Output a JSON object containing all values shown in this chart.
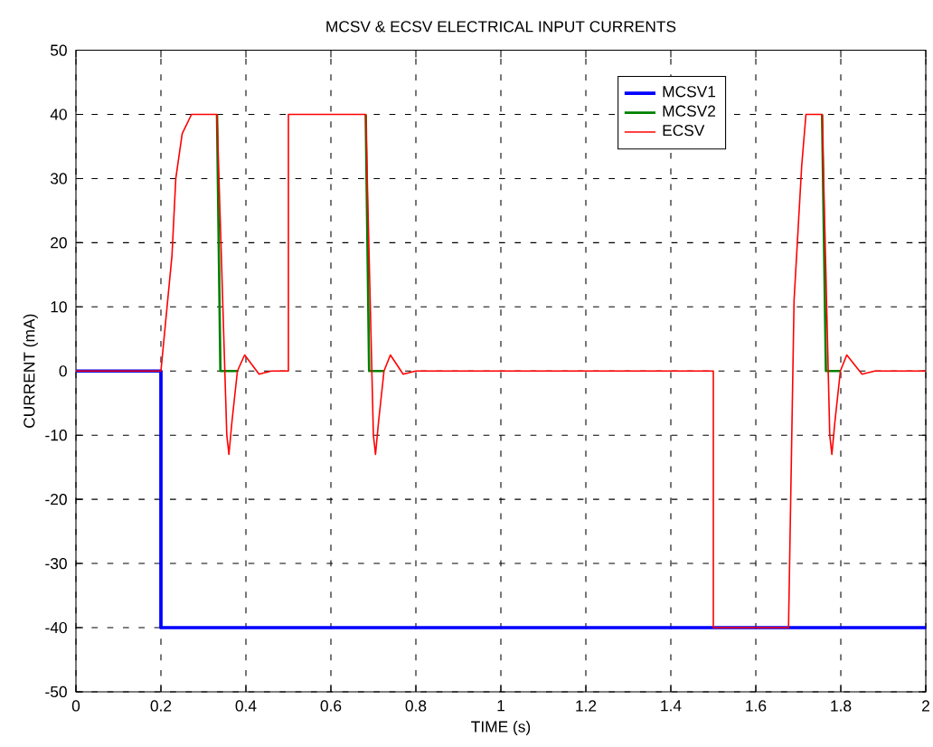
{
  "chart_data": {
    "type": "line",
    "title": "MCSV & ECSV ELECTRICAL INPUT CURRENTS",
    "xlabel": "TIME (s)",
    "ylabel": "CURRENT (mA)",
    "xlim": [
      0,
      2
    ],
    "ylim": [
      -50,
      50
    ],
    "xticks": [
      0,
      0.2,
      0.4,
      0.6,
      0.8,
      1,
      1.2,
      1.4,
      1.6,
      1.8,
      2
    ],
    "yticks": [
      -50,
      -40,
      -30,
      -20,
      -10,
      0,
      10,
      20,
      30,
      40,
      50
    ],
    "grid": true,
    "legend": "top right",
    "marker": "none",
    "line_style": "solid",
    "series": [
      {
        "name": "MCSV1",
        "color": "#0000ff",
        "x": [
          0,
          0.2,
          0.2,
          2
        ],
        "values": [
          0,
          0,
          -40,
          -40
        ]
      },
      {
        "name": "MCSV2",
        "color": "#008000",
        "x": [
          0.332,
          0.34,
          0.38,
          0.39,
          0.682,
          0.69,
          0.725,
          0.74,
          1.756,
          1.765,
          1.799
        ],
        "values": [
          40,
          0,
          0,
          null,
          40,
          0,
          0,
          null,
          40,
          0,
          0
        ]
      },
      {
        "name": "ECSV",
        "color": "#ff0000",
        "x": [
          0,
          0.2,
          0.226,
          0.235,
          0.25,
          0.272,
          0.332,
          0.355,
          0.36,
          0.367,
          0.38,
          0.397,
          0.431,
          0.46,
          0.5,
          0.5,
          0.682,
          0.7,
          0.705,
          0.712,
          0.725,
          0.74,
          0.77,
          0.8,
          1.5,
          1.5,
          1.677,
          1.69,
          1.708,
          1.718,
          1.756,
          1.774,
          1.779,
          1.786,
          1.799,
          1.814,
          1.85,
          1.88,
          2
        ],
        "values": [
          0,
          0,
          18,
          30,
          37,
          40,
          40,
          -10,
          -13,
          -8,
          0,
          2.5,
          -0.5,
          0,
          0,
          40,
          40,
          -10,
          -13,
          -8,
          0,
          2.5,
          -0.5,
          0,
          0,
          -40,
          -40,
          11,
          32,
          40,
          40,
          -10,
          -13,
          -8,
          0,
          2.5,
          -0.5,
          0,
          0
        ]
      }
    ]
  }
}
